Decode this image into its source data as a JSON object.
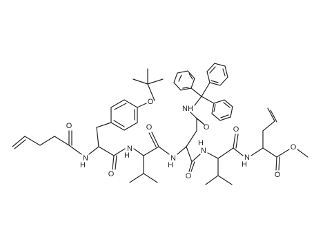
{
  "atom_labels": [
    "O",
    "N",
    "H",
    "O",
    "O",
    "N",
    "H",
    "O",
    "N",
    "H",
    "NH",
    "O",
    "O",
    "H",
    "N",
    "O",
    "N",
    "H",
    "O",
    "O"
  ]
}
